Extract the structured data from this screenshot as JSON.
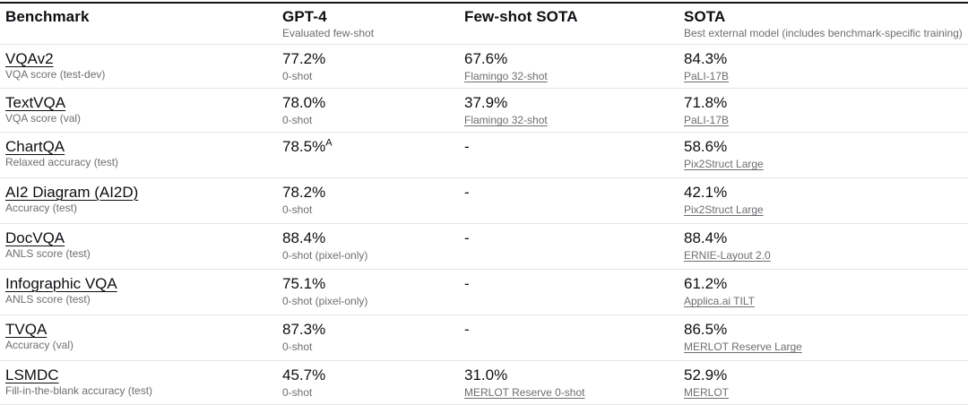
{
  "table": {
    "columns": [
      {
        "label": "Benchmark",
        "sublabel": ""
      },
      {
        "label": "GPT-4",
        "sublabel": "Evaluated few-shot"
      },
      {
        "label": "Few-shot SOTA",
        "sublabel": ""
      },
      {
        "label": "SOTA",
        "sublabel": "Best external model (includes benchmark-specific training)"
      }
    ],
    "rows": [
      {
        "benchmark": "VQAv2",
        "metric": "VQA score (test-dev)",
        "gpt4": {
          "value": "77.2%",
          "sub": "0-shot"
        },
        "fewshot": {
          "value": "67.6%",
          "sub": "Flamingo 32-shot"
        },
        "sota": {
          "value": "84.3%",
          "sub": "PaLI-17B"
        }
      },
      {
        "benchmark": "TextVQA",
        "metric": "VQA score (val)",
        "gpt4": {
          "value": "78.0%",
          "sub": "0-shot"
        },
        "fewshot": {
          "value": "37.9%",
          "sub": "Flamingo 32-shot"
        },
        "sota": {
          "value": "71.8%",
          "sub": "PaLI-17B"
        }
      },
      {
        "benchmark": "ChartQA",
        "metric": "Relaxed accuracy (test)",
        "gpt4": {
          "value": "78.5%",
          "sup": "A"
        },
        "fewshot": {
          "value": "-"
        },
        "sota": {
          "value": "58.6%",
          "sub": "Pix2Struct Large"
        }
      },
      {
        "benchmark": "AI2 Diagram (AI2D)",
        "metric": "Accuracy (test)",
        "gpt4": {
          "value": "78.2%",
          "sub": "0-shot"
        },
        "fewshot": {
          "value": "-"
        },
        "sota": {
          "value": "42.1%",
          "sub": "Pix2Struct Large"
        }
      },
      {
        "benchmark": "DocVQA",
        "metric": "ANLS score (test)",
        "gpt4": {
          "value": "88.4%",
          "sub": "0-shot (pixel-only)"
        },
        "fewshot": {
          "value": "-"
        },
        "sota": {
          "value": "88.4%",
          "sub": "ERNIE-Layout 2.0"
        }
      },
      {
        "benchmark": "Infographic VQA",
        "metric": "ANLS score (test)",
        "gpt4": {
          "value": "75.1%",
          "sub": "0-shot (pixel-only)"
        },
        "fewshot": {
          "value": "-"
        },
        "sota": {
          "value": "61.2%",
          "sub": "Applica.ai TILT"
        }
      },
      {
        "benchmark": "TVQA",
        "metric": "Accuracy (val)",
        "gpt4": {
          "value": "87.3%",
          "sub": "0-shot"
        },
        "fewshot": {
          "value": "-"
        },
        "sota": {
          "value": "86.5%",
          "sub": "MERLOT Reserve Large"
        }
      },
      {
        "benchmark": "LSMDC",
        "metric": "Fill-in-the-blank accuracy (test)",
        "gpt4": {
          "value": "45.7%",
          "sub": "0-shot"
        },
        "fewshot": {
          "value": "31.0%",
          "sub": "MERLOT Reserve 0-shot"
        },
        "sota": {
          "value": "52.9%",
          "sub": "MERLOT"
        }
      }
    ]
  },
  "colors": {
    "text": "#0e0e13",
    "muted": "#6e6e73",
    "divider": "#e4e4e4",
    "top_border": "#131318",
    "background": "#ffffff"
  }
}
